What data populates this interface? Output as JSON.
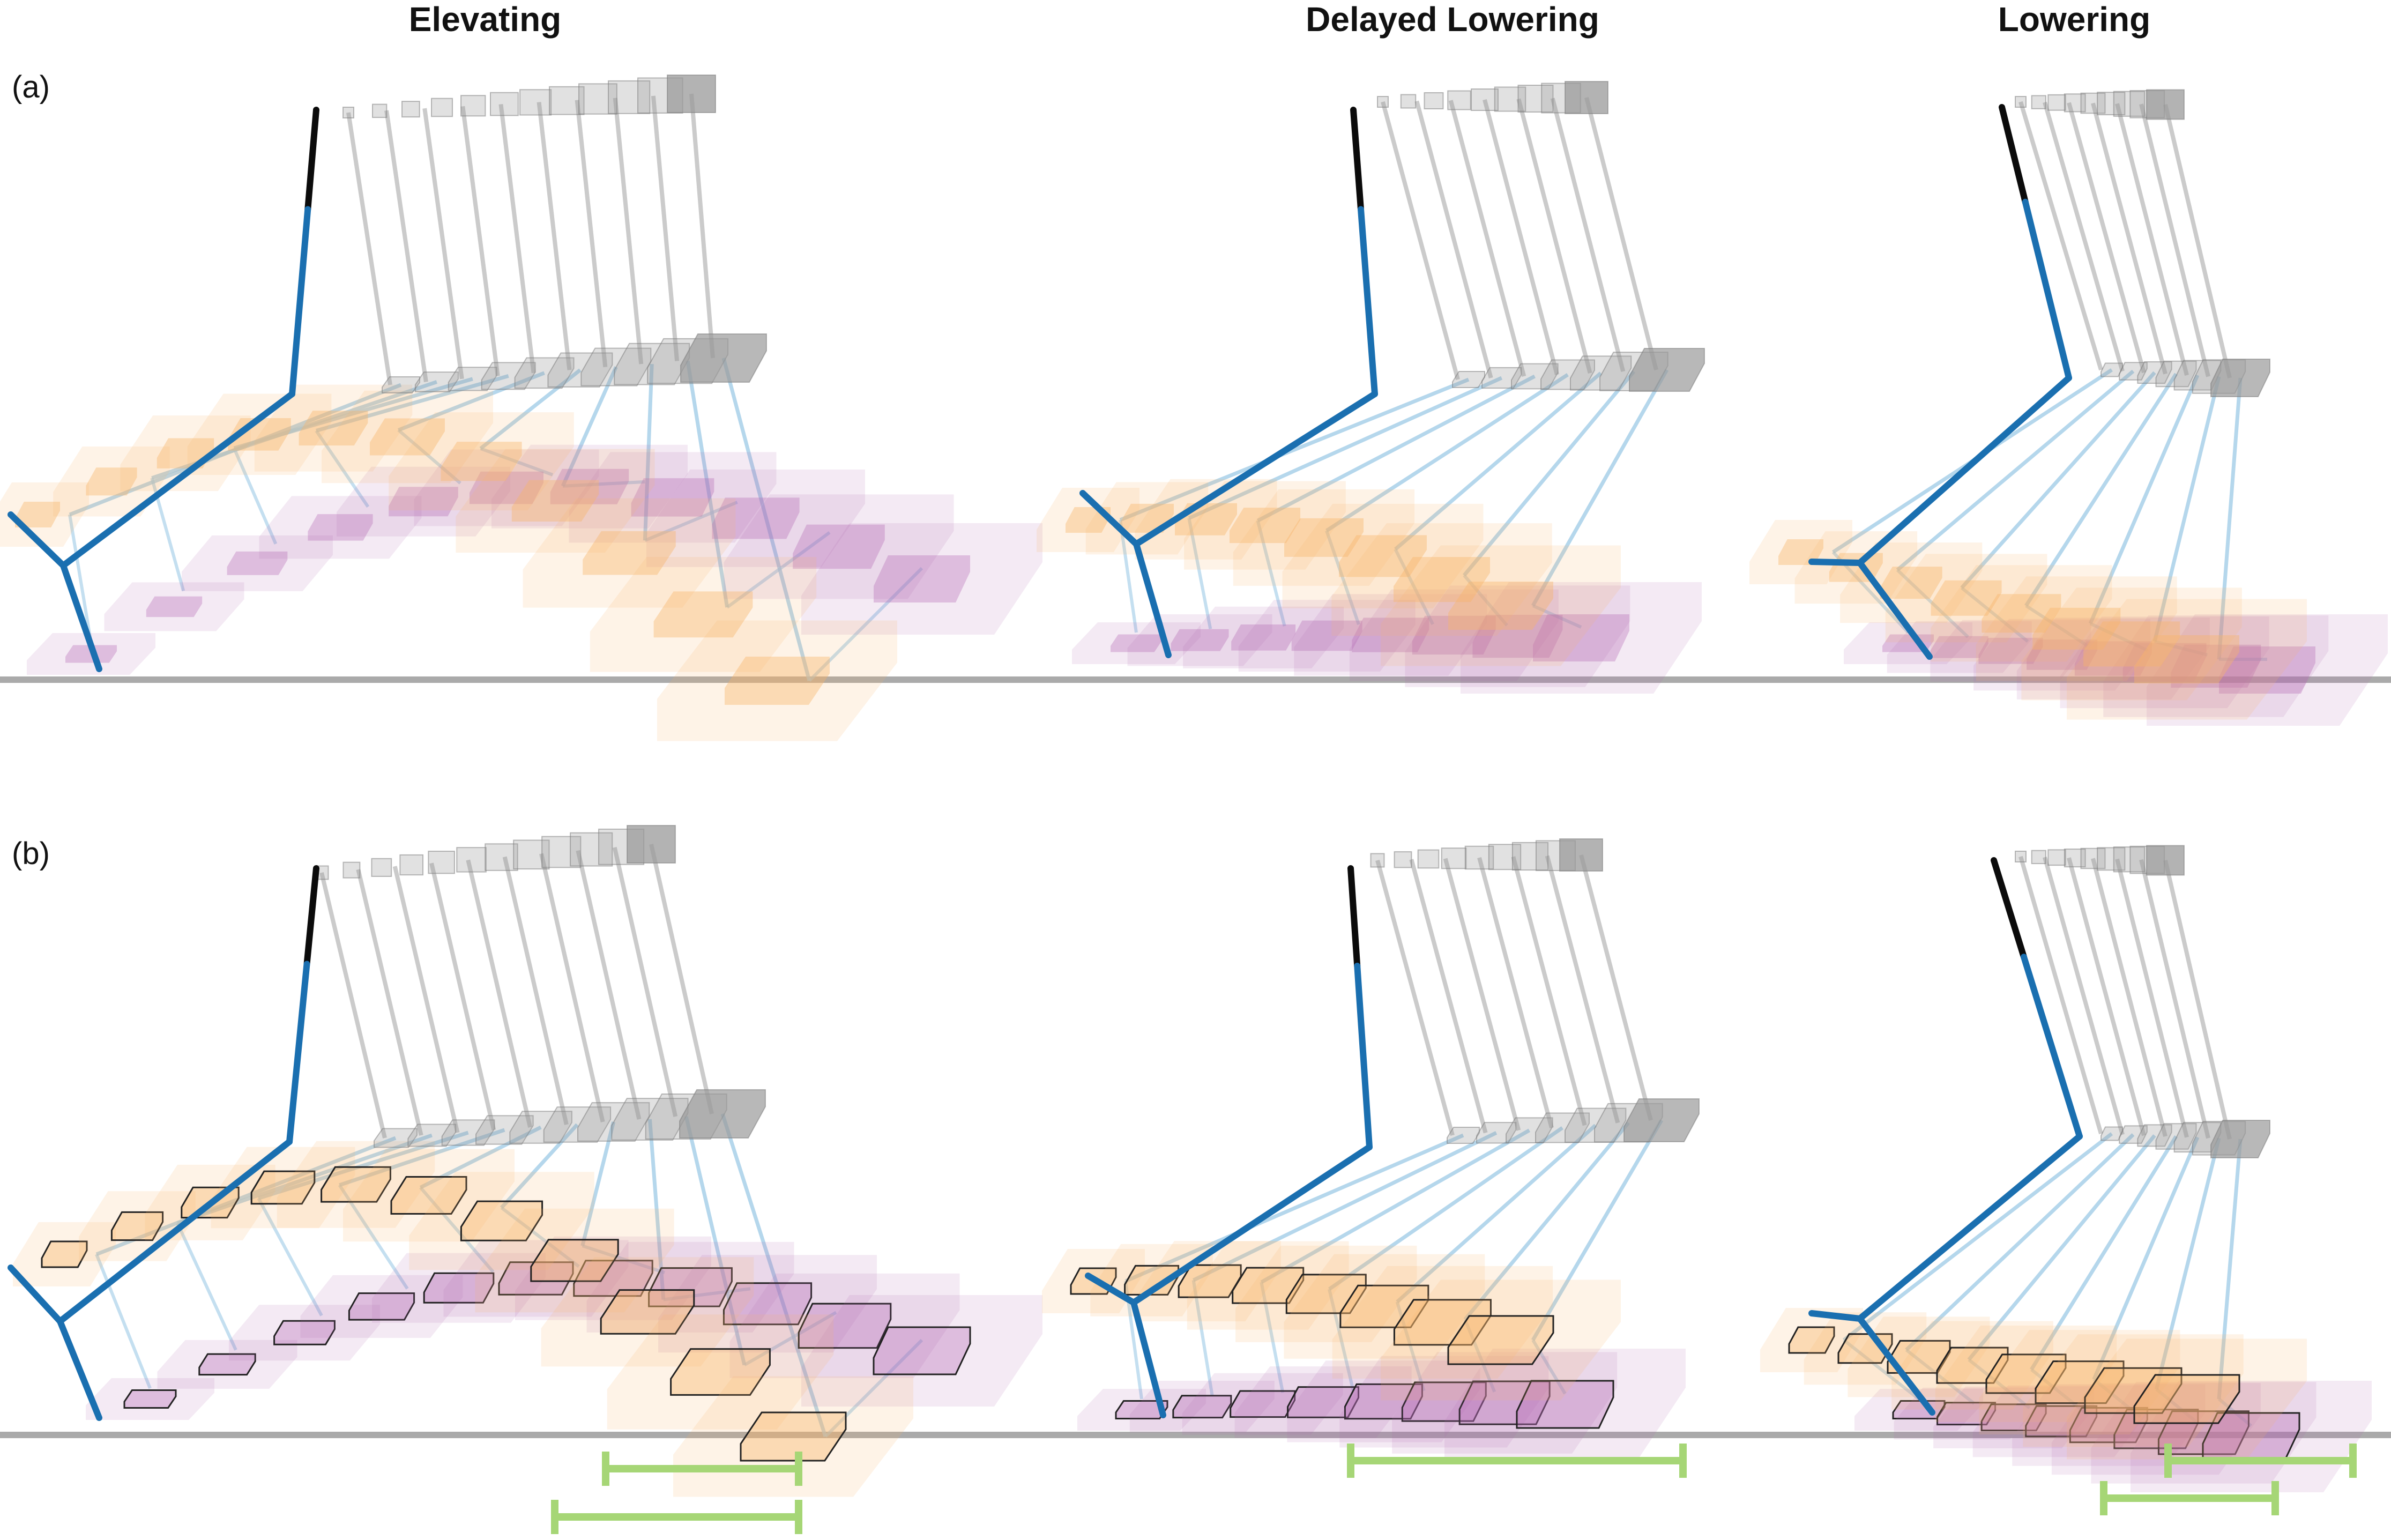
{
  "columns": [
    "Elevating",
    "Delayed Lowering",
    "Lowering"
  ],
  "panels": [
    "(a)",
    "(b)"
  ],
  "colors": {
    "background": "#ffffff",
    "limb": "#1a6fb0",
    "limb_tip": "#0b0b0b",
    "link": "#9cc9e6",
    "gray_box": "#9a9a9a",
    "orange_blob": "#f7b36a",
    "purple_blob": "#b46ab4",
    "ground": "#aaaaaa",
    "range_bar": "#a6d676"
  }
}
